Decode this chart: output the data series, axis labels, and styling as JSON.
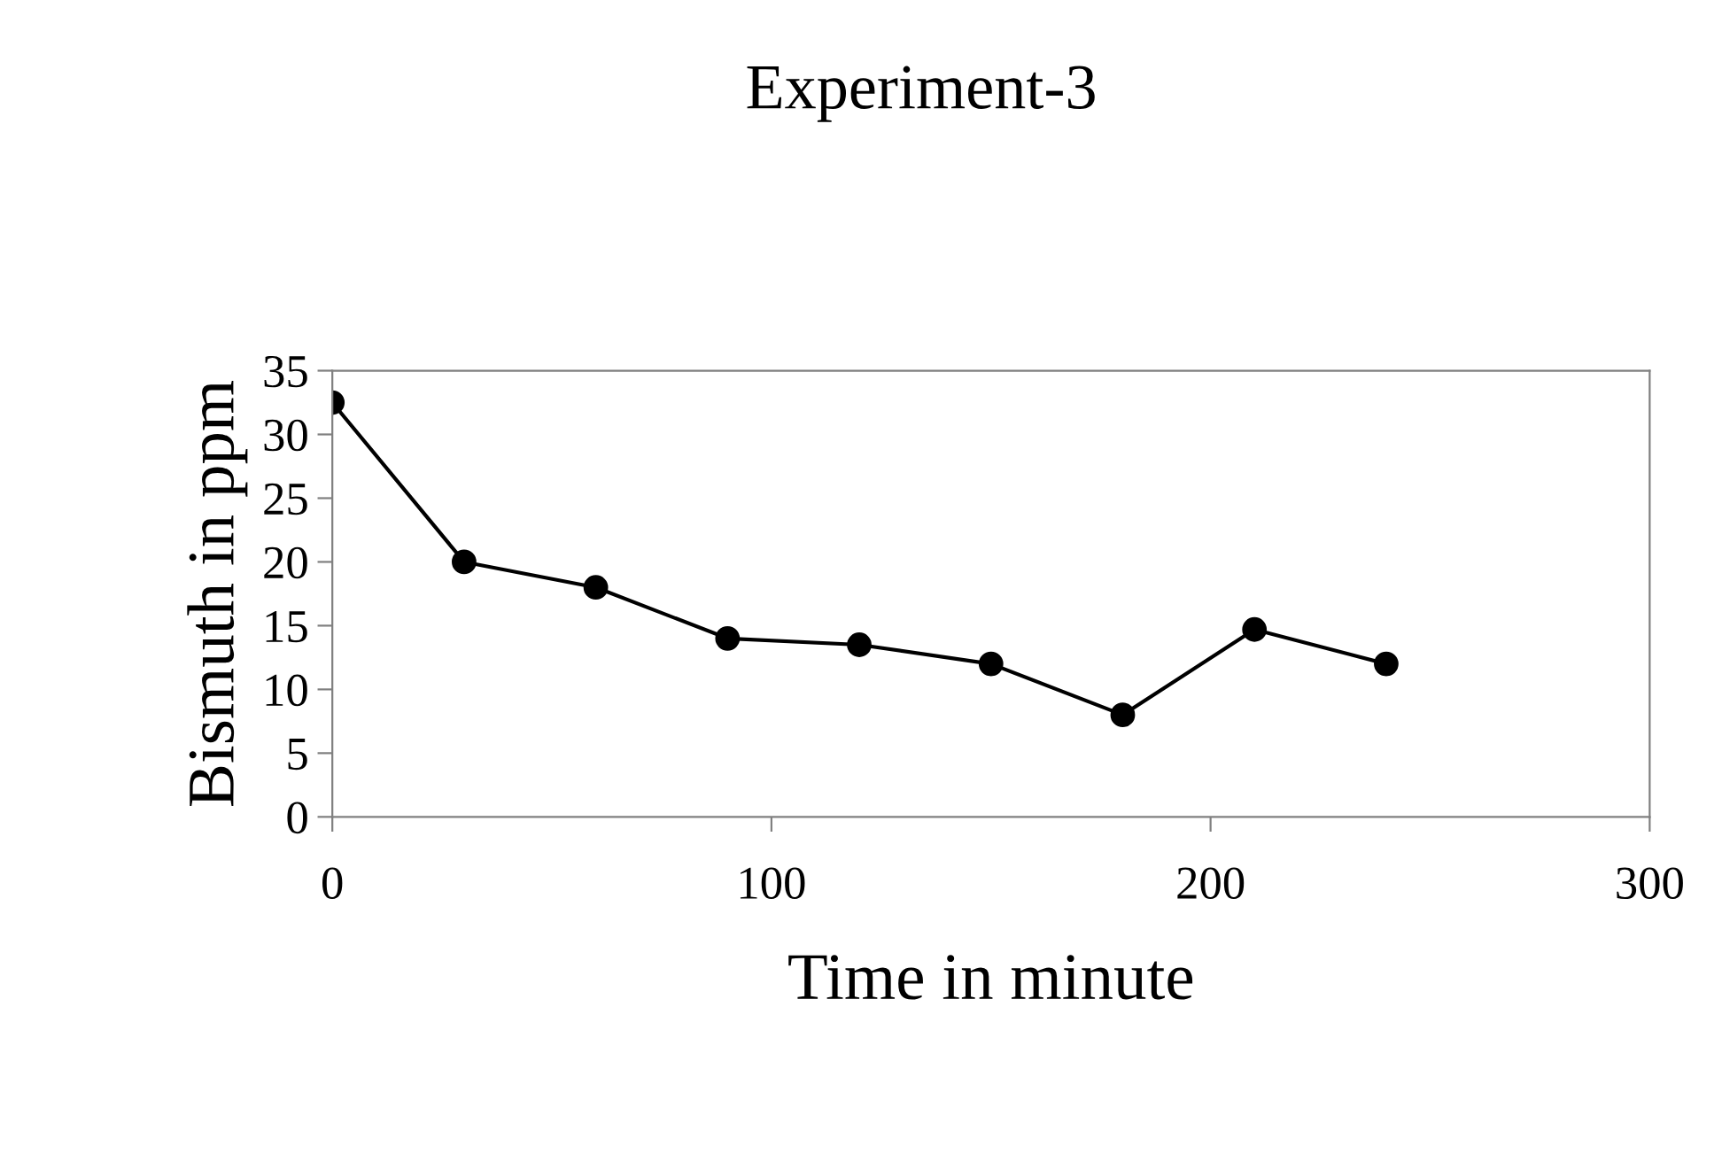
{
  "chart_data": {
    "type": "line",
    "title": "Experiment-3",
    "xlabel": "Time in minute",
    "ylabel": "Bismuth in ppm",
    "x": [
      0,
      30,
      60,
      90,
      120,
      150,
      180,
      210,
      240
    ],
    "series": [
      {
        "color": "#000000",
        "values": [
          32.5,
          20,
          18,
          14,
          13.5,
          12,
          8,
          14.7,
          12
        ]
      }
    ],
    "xlim": [
      0,
      300
    ],
    "xticks": [
      0,
      100,
      200,
      300
    ],
    "ylim": [
      0,
      35
    ],
    "yticks": [
      0,
      5,
      10,
      15,
      20,
      25,
      30,
      35
    ],
    "marker": "circle",
    "line_style": "solid",
    "grid": false,
    "legend": false
  }
}
